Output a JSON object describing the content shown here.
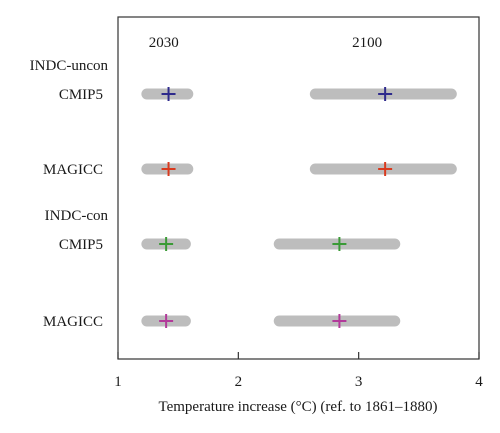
{
  "chart_data": {
    "type": "range-dot",
    "xlabel": "Temperature increase (°C) (ref. to 1861–1880)",
    "xlim": [
      1,
      4
    ],
    "xticks": [
      "1",
      "2",
      "3",
      "4"
    ],
    "period_labels": [
      "2030",
      "2100"
    ],
    "group_labels": [
      "INDC-uncon",
      "INDC-con"
    ],
    "rows": [
      {
        "label": "CMIP5",
        "marker_color": "#2e2a8c",
        "ranges": [
          {
            "period": "2030",
            "low": 1.24,
            "high": 1.58,
            "median": 1.42
          },
          {
            "period": "2100",
            "low": 2.64,
            "high": 3.77,
            "median": 3.22
          }
        ]
      },
      {
        "label": "MAGICC",
        "marker_color": "#d93a1e",
        "ranges": [
          {
            "period": "2030",
            "low": 1.24,
            "high": 1.58,
            "median": 1.42
          },
          {
            "period": "2100",
            "low": 2.64,
            "high": 3.77,
            "median": 3.22
          }
        ]
      },
      {
        "label": "CMIP5",
        "marker_color": "#3a9a36",
        "ranges": [
          {
            "period": "2030",
            "low": 1.24,
            "high": 1.56,
            "median": 1.4
          },
          {
            "period": "2100",
            "low": 2.34,
            "high": 3.3,
            "median": 2.84
          }
        ]
      },
      {
        "label": "MAGICC",
        "marker_color": "#b23a9a",
        "ranges": [
          {
            "period": "2030",
            "low": 1.24,
            "high": 1.56,
            "median": 1.4
          },
          {
            "period": "2100",
            "low": 2.34,
            "high": 3.3,
            "median": 2.84
          }
        ]
      }
    ],
    "range_color": "#bdbdbd",
    "grid": false
  }
}
